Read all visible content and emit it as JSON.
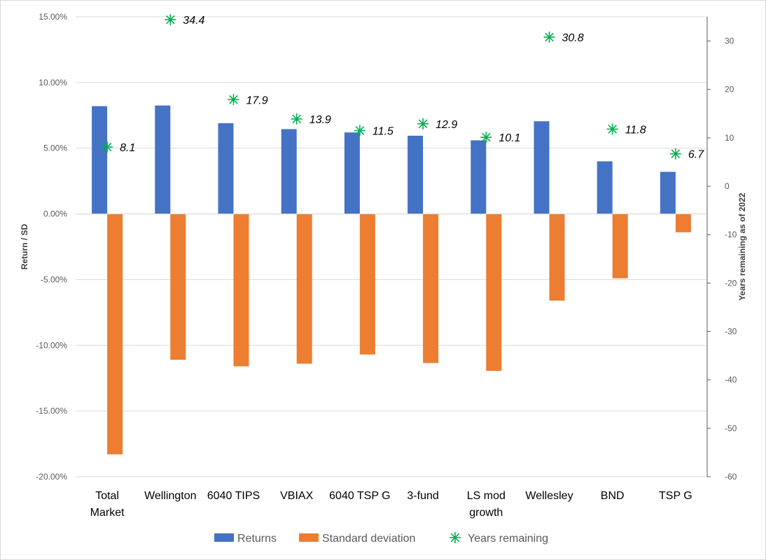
{
  "chart_data": {
    "type": "bar",
    "categories": [
      "Total Market",
      "Wellington",
      "6040 TIPS",
      "VBIAX",
      "6040 TSP G",
      "3-fund",
      "LS mod growth",
      "Wellesley",
      "BND",
      "TSP G"
    ],
    "category_lines": [
      [
        "Total",
        "Market"
      ],
      [
        "Wellington"
      ],
      [
        "6040 TIPS"
      ],
      [
        "VBIAX"
      ],
      [
        "6040 TSP G"
      ],
      [
        "3-fund"
      ],
      [
        "LS mod",
        "growth"
      ],
      [
        "Wellesley"
      ],
      [
        "BND"
      ],
      [
        "TSP G"
      ]
    ],
    "series": [
      {
        "name": "Returns",
        "type": "bar",
        "axis": "left",
        "color": "#4472c4",
        "values": [
          8.2,
          8.25,
          6.9,
          6.45,
          6.2,
          5.95,
          5.6,
          7.05,
          4.0,
          3.2
        ]
      },
      {
        "name": "Standard deviation",
        "type": "bar",
        "axis": "left",
        "color": "#ed7d31",
        "values": [
          -18.3,
          -11.1,
          -11.6,
          -11.4,
          -10.7,
          -11.35,
          -11.95,
          -6.6,
          -4.9,
          -1.4
        ]
      },
      {
        "name": "Years remaining",
        "type": "scatter",
        "axis": "right",
        "color": "#00b050",
        "marker": "asterisk",
        "values": [
          8.1,
          34.4,
          17.9,
          13.9,
          11.5,
          12.9,
          10.1,
          30.8,
          11.8,
          6.7
        ],
        "labels": [
          "8.1",
          "34.4",
          "17.9",
          "13.9",
          "11.5",
          "12.9",
          "10.1",
          "30.8",
          "11.8",
          "6.7"
        ]
      }
    ],
    "y_left": {
      "label": "Return / SD",
      "min": -20,
      "max": 15,
      "ticks": [
        15,
        10,
        5,
        0,
        -5,
        -10,
        -15,
        -20
      ],
      "tick_labels": [
        "15.00%",
        "10.00%",
        "5.00%",
        "0.00%",
        "-5.00%",
        "-10.00%",
        "-15.00%",
        "-20.00%"
      ]
    },
    "y_right": {
      "label": "Years remaining as of 2022",
      "min": -60,
      "max": 35,
      "ticks": [
        30,
        20,
        10,
        0,
        -10,
        -20,
        -30,
        -40,
        -50,
        -60
      ],
      "tick_labels": [
        "30",
        "20",
        "10",
        "0",
        "-10",
        "-20",
        "-30",
        "-40",
        "-50",
        "-60"
      ]
    },
    "grid": true,
    "legend": "bottom",
    "legend_labels": [
      "Returns",
      "Standard deviation",
      "Years remaining"
    ]
  }
}
